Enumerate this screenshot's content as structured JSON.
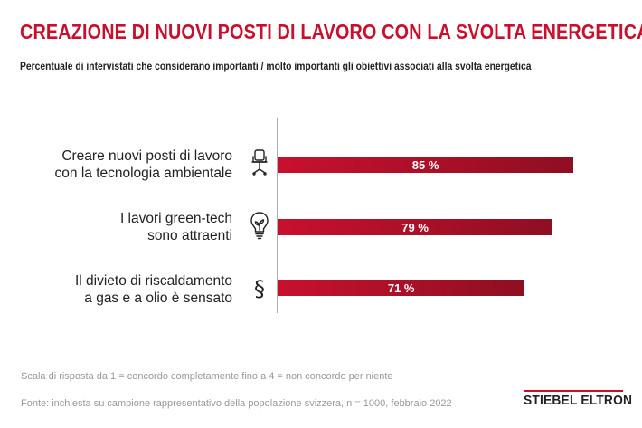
{
  "title": "CREAZIONE DI NUOVI POSTI DI LAVORO CON LA SVOLTA ENERGETICA",
  "subtitle": "Percentuale di intervistati che considerano importanti / molto importanti gli obiettivi associati alla svolta energetica",
  "note": "Scala di risposta da 1 = concordo completamente fino a 4 = non concordo per niente",
  "source": "Fonte: inchiesta su campione rappresentativo della popolazione svizzera, n = 1000, febbraio 2022",
  "brand": "STIEBEL ELTRON",
  "colors": {
    "accent": "#c8102e",
    "bar_start": "#c8102e",
    "bar_end": "#8e0f22"
  },
  "chart_data": {
    "type": "bar",
    "orientation": "horizontal",
    "categories": [
      [
        "Creare nuovi posti di lavoro",
        "con la tecnologia ambientale"
      ],
      [
        "I lavori green-tech",
        "sono attraenti"
      ],
      [
        "Il divieto di riscaldamento",
        "a gas e a olio è sensato"
      ]
    ],
    "values": [
      85,
      79,
      71
    ],
    "value_labels": [
      "85 %",
      "79 %",
      "71 %"
    ],
    "icons": [
      "office-chair-icon",
      "lightbulb-icon",
      "paragraph-icon"
    ],
    "xlim": [
      0,
      100
    ],
    "grid": false
  }
}
